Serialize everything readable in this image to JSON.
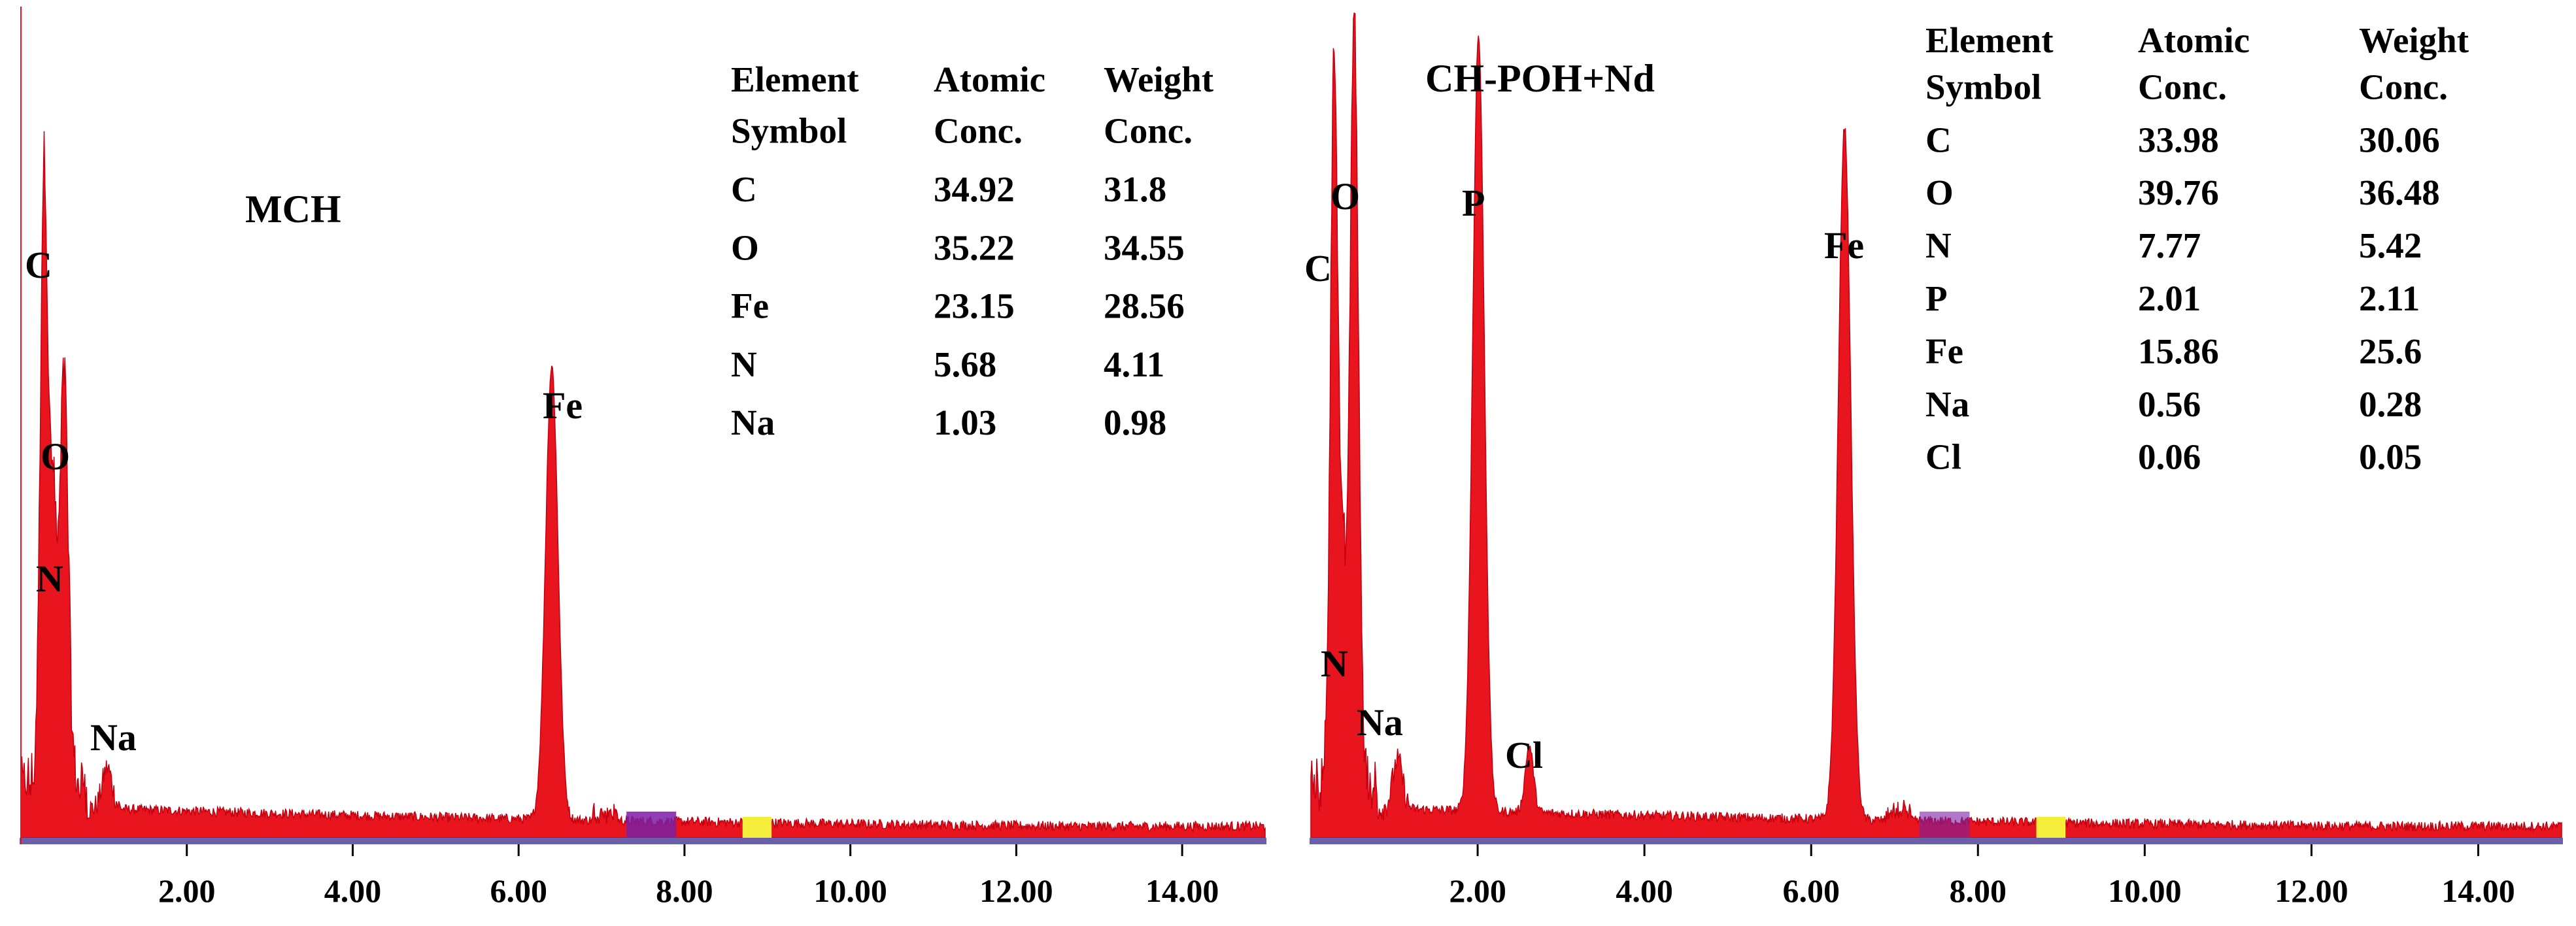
{
  "chart_data": [
    {
      "type": "area",
      "title": "MCH",
      "xlabel": "",
      "ylabel": "",
      "xlim": [
        0,
        15
      ],
      "xticks": [
        "2.00",
        "4.00",
        "6.00",
        "8.00",
        "10.00",
        "12.00",
        "14.00"
      ],
      "grid": false,
      "fill_color": "#e8141e",
      "peaks": [
        {
          "label": "C",
          "x": 0.28,
          "height": 0.76
        },
        {
          "label": "O",
          "x": 0.52,
          "height": 0.51
        },
        {
          "label": "N",
          "x": 0.39,
          "height": 0.33
        },
        {
          "label": "Na",
          "x": 1.04,
          "height": 0.05
        },
        {
          "label": "Fe",
          "x": 6.4,
          "height": 0.55
        }
      ],
      "table": {
        "headers": [
          [
            "Element",
            "Symbol"
          ],
          [
            "Atomic",
            "Conc."
          ],
          [
            "Weight",
            "Conc."
          ]
        ],
        "rows": [
          [
            "C",
            "34.92",
            "31.8"
          ],
          [
            "O",
            "35.22",
            "34.55"
          ],
          [
            "Fe",
            "23.15",
            "28.56"
          ],
          [
            "N",
            "5.68",
            "4.11"
          ],
          [
            "Na",
            "1.03",
            "0.98"
          ]
        ]
      }
    },
    {
      "type": "area",
      "title": "CH-POH+Nd",
      "xlabel": "",
      "ylabel": "",
      "xlim": [
        0,
        15
      ],
      "xticks": [
        "2.00",
        "4.00",
        "6.00",
        "8.00",
        "10.00",
        "12.00",
        "14.00"
      ],
      "grid": false,
      "fill_color": "#e8141e",
      "peaks": [
        {
          "label": "C",
          "x": 0.28,
          "height": 0.9
        },
        {
          "label": "O",
          "x": 0.52,
          "height": 0.94
        },
        {
          "label": "N",
          "x": 0.39,
          "height": 0.22
        },
        {
          "label": "Na",
          "x": 1.04,
          "height": 0.06
        },
        {
          "label": "P",
          "x": 2.01,
          "height": 0.94
        },
        {
          "label": "Cl",
          "x": 2.62,
          "height": 0.08
        },
        {
          "label": "Fe",
          "x": 6.4,
          "height": 0.84
        }
      ],
      "table": {
        "headers": [
          [
            "Element",
            "Symbol"
          ],
          [
            "Atomic",
            "Conc."
          ],
          [
            "Weight",
            "Conc."
          ]
        ],
        "rows": [
          [
            "C",
            "33.98",
            "30.06"
          ],
          [
            "O",
            "39.76",
            "36.48"
          ],
          [
            "N",
            "7.77",
            "5.42"
          ],
          [
            "P",
            "2.01",
            "2.11"
          ],
          [
            "Fe",
            "15.86",
            "25.6"
          ],
          [
            "Na",
            "0.56",
            "0.28"
          ],
          [
            "Cl",
            "0.06",
            "0.05"
          ]
        ]
      }
    }
  ]
}
